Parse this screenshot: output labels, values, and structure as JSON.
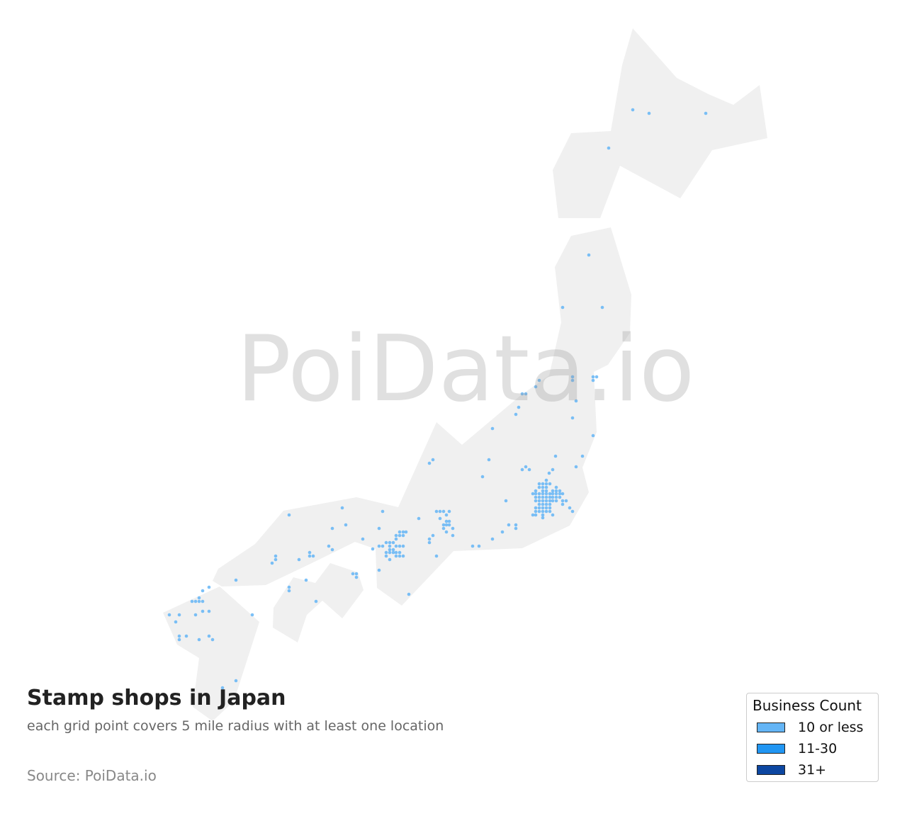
{
  "title": "Stamp shops in Japan",
  "subtitle": "each grid point covers 5 mile radius with at least one location",
  "source": "Source: PoiData.io",
  "watermark": "PoiData.io",
  "colors": {
    "land": "#f0f0f0",
    "point": "#64b5f6",
    "watermark": "#999999"
  },
  "legend": {
    "title": "Business Count",
    "items": [
      {
        "label": "10 or less",
        "color": "#64b5f6"
      },
      {
        "label": "11-30",
        "color": "#2196f3"
      },
      {
        "label": "31+",
        "color": "#0d47a1"
      }
    ]
  },
  "points_category": "10 or less"
}
